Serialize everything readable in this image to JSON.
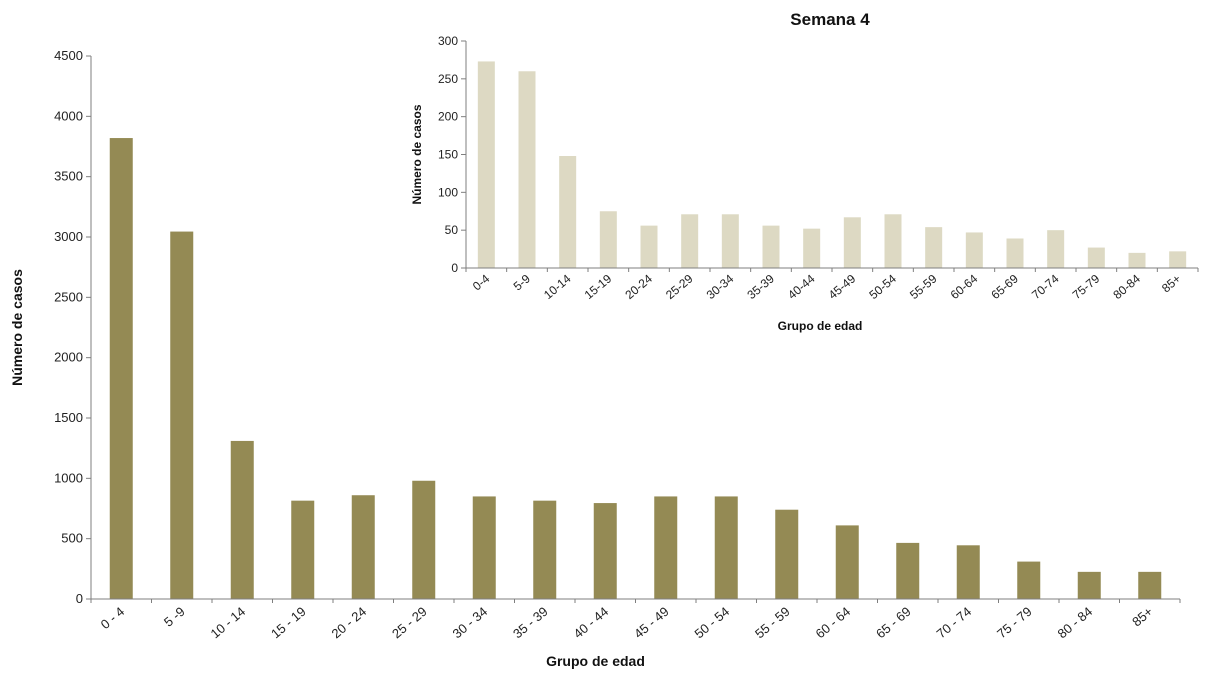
{
  "chart_data": [
    {
      "type": "bar",
      "title": "",
      "xlabel": "Grupo de edad",
      "ylabel": "Número de casos",
      "ylim": [
        0,
        4500
      ],
      "yticks": [
        "0",
        "500",
        "1000",
        "1500",
        "2000",
        "2500",
        "3000",
        "3500",
        "4000",
        "4500"
      ],
      "grid": false,
      "color": "#948a54",
      "categories": [
        "0 - 4",
        "5 -9",
        "10 - 14",
        "15 - 19",
        "20 - 24",
        "25 - 29",
        "30 - 34",
        "35 - 39",
        "40 - 44",
        "45 - 49",
        "50 - 54",
        "55 - 59",
        "60 - 64",
        "65 - 69",
        "70 - 74",
        "75 - 79",
        "80 - 84",
        "85+"
      ],
      "values": [
        3820,
        3045,
        1310,
        815,
        860,
        980,
        850,
        815,
        795,
        850,
        850,
        740,
        610,
        465,
        445,
        310,
        225,
        225
      ]
    },
    {
      "type": "bar",
      "title": "Semana 4",
      "xlabel": "Grupo de edad",
      "ylabel": "Número de casos",
      "ylim": [
        0,
        300
      ],
      "yticks": [
        "0",
        "50",
        "100",
        "150",
        "200",
        "250",
        "300"
      ],
      "grid": false,
      "color": "#ddd9c3",
      "categories": [
        "0-4",
        "5-9",
        "10-14",
        "15-19",
        "20-24",
        "25-29",
        "30-34",
        "35-39",
        "40-44",
        "45-49",
        "50-54",
        "55-59",
        "60-64",
        "65-69",
        "70-74",
        "75-79",
        "80-84",
        "85+"
      ],
      "values": [
        273,
        260,
        148,
        75,
        56,
        71,
        71,
        56,
        52,
        67,
        71,
        54,
        47,
        39,
        50,
        27,
        20,
        22
      ]
    }
  ]
}
